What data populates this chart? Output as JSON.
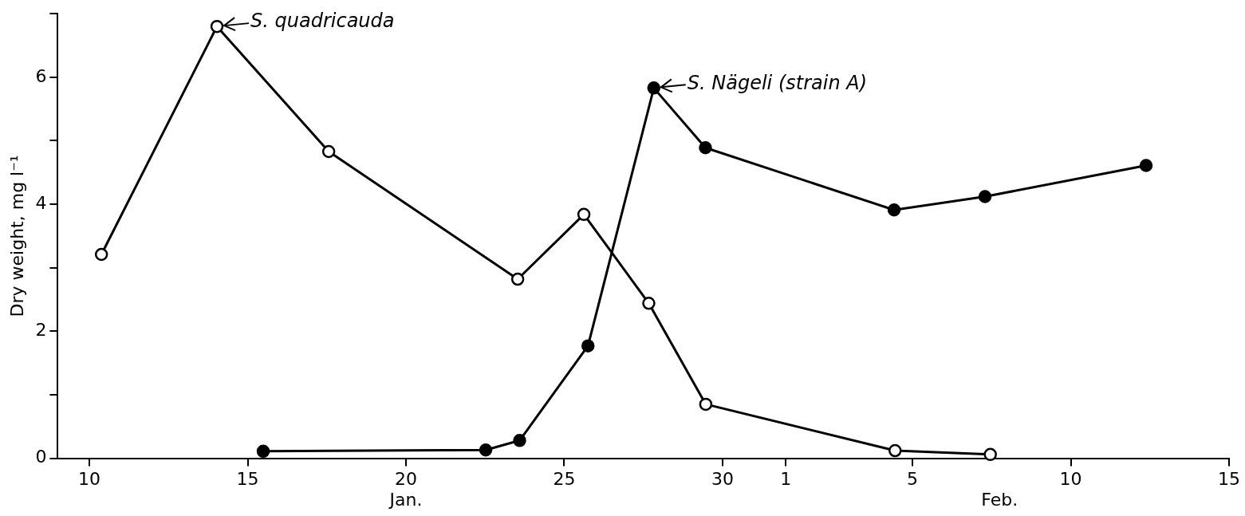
{
  "chart_data": {
    "type": "line",
    "ylabel": "Dry weight, mg l⁻¹",
    "xlim": [
      "--01-09",
      "--02-15"
    ],
    "xticks": [
      {
        "value": "--01-10",
        "label": "10"
      },
      {
        "value": "--01-15",
        "label": "15"
      },
      {
        "value": "--01-20",
        "label": "20"
      },
      {
        "value": "--01-25",
        "label": "25"
      },
      {
        "value": "--01-30",
        "label": "30"
      },
      {
        "value": "--02-01",
        "label": "1"
      },
      {
        "value": "--02-05",
        "label": "5"
      },
      {
        "value": "--02-10",
        "label": "10"
      },
      {
        "value": "--02-15",
        "label": "15"
      }
    ],
    "ylim": [
      0,
      7
    ],
    "yticks": [
      0,
      {
        "value": 1,
        "label": null
      },
      2,
      {
        "value": 3,
        "label": null
      },
      4,
      {
        "value": 5,
        "label": null
      },
      6,
      {
        "value": 7,
        "label": null
      }
    ],
    "grid": false,
    "legend": "top",
    "marker": "circle",
    "line_style": "solid",
    "series": [
      {
        "name": "S. quadricauda",
        "color": "#000000",
        "x": [
          "--01-10T09:07",
          "--01-14T00:43",
          "--01-17T13:26",
          "--01-23T12:43",
          "--01-25T14:53",
          "--01-27T16:05",
          "--01-29T11:17",
          "--02-04T10:48",
          "--02-07T11:02"
        ],
        "values": [
          3.21,
          6.8,
          4.83,
          2.82,
          3.84,
          2.44,
          0.85,
          0.12,
          0.06
        ]
      },
      {
        "name": "S. Nägeli (strain A)",
        "color": "#000000",
        "x": [
          "--01-15T11:46",
          "--01-22T12:29",
          "--01-23T14:10",
          "--01-25T18:00",
          "--01-27T19:55",
          "--01-29T11:02",
          "--02-04T10:05",
          "--02-07T06:58",
          "--02-12T09:07"
        ],
        "values": [
          0.11,
          0.13,
          0.28,
          1.77,
          5.83,
          4.89,
          3.91,
          4.12,
          4.61
        ]
      }
    ],
    "annotations": [
      "Jan.",
      "Feb."
    ]
  }
}
